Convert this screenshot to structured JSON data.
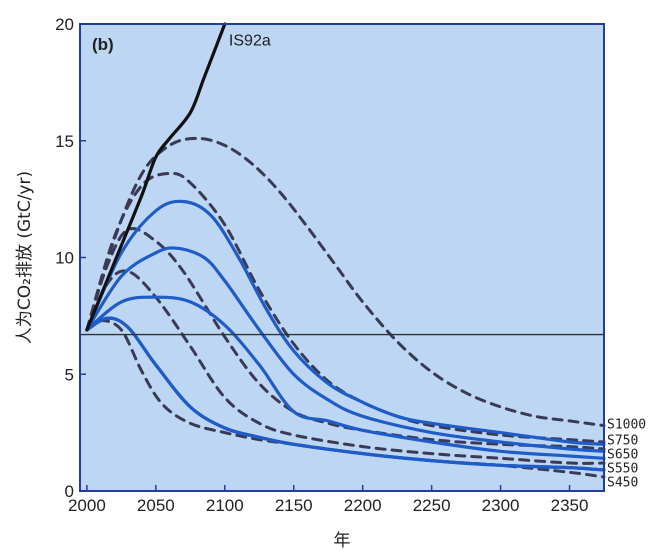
{
  "chart_data": {
    "type": "line",
    "panel_label": "(b)",
    "xlabel": "年",
    "ylabel": "人为CO₂排放 (GtC/yr)",
    "xlim": [
      1995,
      2375
    ],
    "ylim": [
      0,
      20
    ],
    "x_ticks": [
      2000,
      2050,
      2100,
      2150,
      2200,
      2250,
      2300,
      2350
    ],
    "y_ticks": [
      0,
      5,
      10,
      15,
      20
    ],
    "background": "#bcd6f4",
    "grid": false,
    "reference_line": {
      "y": 6.7,
      "color": "#333333"
    },
    "series": [
      {
        "name": "IS92a",
        "style": "solid",
        "color": "#111111",
        "x": [
          2000,
          2020,
          2040,
          2050,
          2060,
          2075,
          2085,
          2100
        ],
        "y": [
          6.9,
          9.8,
          12.7,
          14.3,
          15.1,
          16.2,
          17.7,
          20.0
        ]
      },
      {
        "name": "S1000",
        "style": "dashed",
        "color": "#3a3a55",
        "x": [
          2000,
          2020,
          2040,
          2060,
          2080,
          2100,
          2120,
          2140,
          2160,
          2180,
          2200,
          2225,
          2250,
          2275,
          2300,
          2325,
          2350,
          2375
        ],
        "y": [
          6.9,
          10.8,
          13.6,
          14.8,
          15.1,
          14.8,
          14.0,
          12.8,
          11.3,
          9.7,
          8.1,
          6.4,
          5.1,
          4.2,
          3.6,
          3.2,
          3.0,
          2.8
        ]
      },
      {
        "name": "S750",
        "style": "dashed",
        "color": "#3a3a55",
        "x": [
          2000,
          2020,
          2040,
          2060,
          2075,
          2100,
          2125,
          2150,
          2175,
          2200,
          2225,
          2250,
          2300,
          2350,
          2375
        ],
        "y": [
          6.9,
          10.9,
          13.1,
          13.6,
          13.2,
          11.4,
          8.6,
          6.3,
          4.7,
          3.8,
          3.2,
          2.8,
          2.4,
          2.2,
          2.1
        ]
      },
      {
        "name": "S650",
        "style": "dashed",
        "color": "#3a3a55",
        "x": [
          2000,
          2015,
          2030,
          2050,
          2070,
          2100,
          2125,
          2150,
          2175,
          2200,
          2250,
          2300,
          2350,
          2375
        ],
        "y": [
          6.9,
          9.7,
          11.2,
          10.7,
          9.4,
          6.6,
          4.6,
          3.4,
          2.9,
          2.6,
          2.2,
          2.0,
          1.9,
          1.8
        ]
      },
      {
        "name": "S550",
        "style": "dashed",
        "color": "#3a3a55",
        "x": [
          2000,
          2015,
          2030,
          2050,
          2075,
          2100,
          2125,
          2150,
          2200,
          2250,
          2300,
          2350,
          2375
        ],
        "y": [
          6.9,
          8.9,
          9.4,
          8.3,
          6.2,
          4.0,
          2.9,
          2.4,
          1.9,
          1.6,
          1.4,
          1.2,
          1.2
        ]
      },
      {
        "name": "S450",
        "style": "dashed",
        "color": "#3a3a55",
        "x": [
          2000,
          2010,
          2025,
          2040,
          2055,
          2075,
          2100,
          2125,
          2150,
          2200,
          2250,
          2300,
          2350,
          2375
        ],
        "y": [
          6.9,
          7.3,
          6.9,
          5.1,
          3.7,
          2.9,
          2.5,
          2.2,
          2.0,
          1.6,
          1.3,
          1.1,
          0.8,
          0.6
        ]
      },
      {
        "name": "S1000",
        "style": "solid",
        "color": "#1f5cc8",
        "x": [
          2000,
          2025,
          2050,
          2070,
          2090,
          2110,
          2130,
          2150,
          2175,
          2200,
          2225,
          2250,
          2300,
          2350,
          2375
        ],
        "y": [
          6.9,
          10.2,
          12.0,
          12.4,
          11.8,
          10.0,
          7.8,
          6.0,
          4.6,
          3.8,
          3.2,
          2.9,
          2.5,
          2.1,
          2.0
        ]
      },
      {
        "name": "S750",
        "style": "solid",
        "color": "#1f5cc8",
        "x": [
          2000,
          2025,
          2050,
          2065,
          2085,
          2100,
          2125,
          2150,
          2175,
          2200,
          2250,
          2300,
          2350,
          2375
        ],
        "y": [
          6.9,
          9.2,
          10.2,
          10.4,
          10.0,
          9.0,
          6.9,
          5.0,
          3.9,
          3.2,
          2.5,
          2.1,
          1.8,
          1.7
        ]
      },
      {
        "name": "S650",
        "style": "solid",
        "color": "#1f5cc8",
        "x": [
          2000,
          2025,
          2050,
          2075,
          2100,
          2125,
          2150,
          2175,
          2200,
          2250,
          2300,
          2350,
          2375
        ],
        "y": [
          6.9,
          8.1,
          8.3,
          8.1,
          7.1,
          5.4,
          3.4,
          3.0,
          2.6,
          2.1,
          1.7,
          1.5,
          1.4
        ]
      },
      {
        "name": "S550",
        "style": "solid",
        "color": "#1f5cc8",
        "x": [
          2000,
          2015,
          2030,
          2050,
          2075,
          2100,
          2125,
          2150,
          2200,
          2250,
          2300,
          2350,
          2375
        ],
        "y": [
          6.9,
          7.4,
          7.0,
          5.4,
          3.6,
          2.7,
          2.3,
          2.0,
          1.6,
          1.3,
          1.1,
          1.0,
          0.9
        ]
      },
      {
        "name": "S450",
        "style": "solid",
        "color": "#1f5cc8",
        "x": [
          2000,
          2015,
          2030,
          2050,
          2075,
          2100,
          2125,
          2150,
          2200,
          2250,
          2300,
          2350,
          2375
        ],
        "y": [
          6.9,
          7.4,
          7.0,
          5.4,
          3.6,
          2.7,
          2.3,
          2.0,
          1.6,
          1.3,
          1.1,
          1.0,
          0.9
        ]
      }
    ],
    "annotations": [
      {
        "text": "IS92a",
        "x": 2103,
        "y": 19.3
      }
    ],
    "right_labels": [
      {
        "text": "S1000",
        "y": 2.9
      },
      {
        "text": "S750",
        "y": 2.2
      },
      {
        "text": "S650",
        "y": 1.6
      },
      {
        "text": "S550",
        "y": 1.0
      },
      {
        "text": "S450",
        "y": 0.4
      }
    ]
  }
}
